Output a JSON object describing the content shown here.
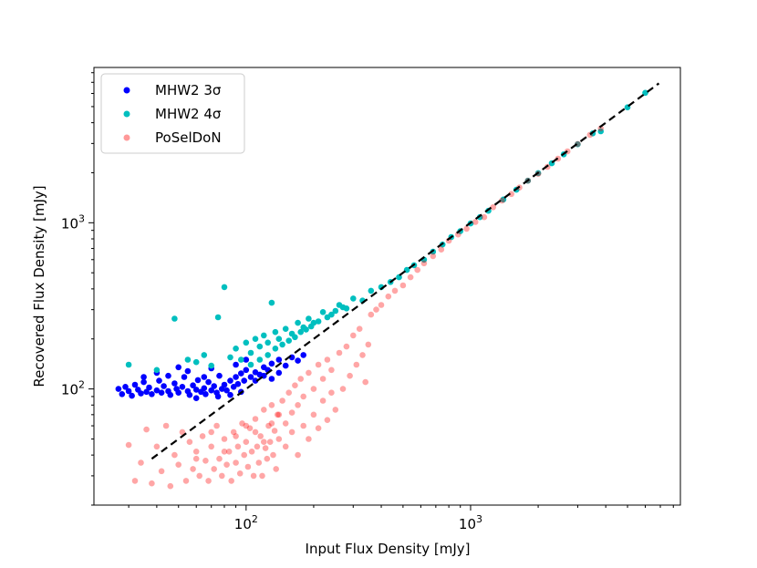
{
  "chart_data": {
    "type": "scatter",
    "title": "",
    "xlabel": "Input Flux Density [mJy]",
    "ylabel": "Recovered Flux Density [mJy]",
    "xscale": "log",
    "yscale": "log",
    "xlim": [
      21,
      8600
    ],
    "ylim": [
      20,
      8600
    ],
    "x_ticks": [
      {
        "value": 100,
        "label": "10",
        "exp": "2"
      },
      {
        "value": 1000,
        "label": "10",
        "exp": "3"
      }
    ],
    "y_ticks": [
      {
        "value": 100,
        "label": "10",
        "exp": "2"
      },
      {
        "value": 1000,
        "label": "10",
        "exp": "3"
      }
    ],
    "grid": false,
    "legend_position": "top-left",
    "legend": [
      {
        "label": "MHW2 3σ",
        "series": 0
      },
      {
        "label": "MHW2 4σ",
        "series": 1
      },
      {
        "label": "PoSelDoN",
        "series": 2
      }
    ],
    "series": [
      {
        "name": "MHW2 3σ",
        "color": "#0000ff",
        "opacity": 1.0,
        "points": [
          [
            27,
            100
          ],
          [
            28,
            93
          ],
          [
            29,
            103
          ],
          [
            30,
            97
          ],
          [
            31,
            91
          ],
          [
            32,
            106
          ],
          [
            33,
            99
          ],
          [
            34,
            94
          ],
          [
            35,
            110
          ],
          [
            36,
            96
          ],
          [
            37,
            102
          ],
          [
            38,
            93
          ],
          [
            40,
            98
          ],
          [
            41,
            112
          ],
          [
            42,
            95
          ],
          [
            43,
            104
          ],
          [
            45,
            97
          ],
          [
            46,
            92
          ],
          [
            48,
            108
          ],
          [
            49,
            100
          ],
          [
            50,
            95
          ],
          [
            52,
            103
          ],
          [
            53,
            118
          ],
          [
            55,
            97
          ],
          [
            56,
            92
          ],
          [
            58,
            105
          ],
          [
            60,
            99
          ],
          [
            61,
            113
          ],
          [
            63,
            96
          ],
          [
            65,
            101
          ],
          [
            66,
            93
          ],
          [
            68,
            110
          ],
          [
            70,
            98
          ],
          [
            72,
            104
          ],
          [
            74,
            95
          ],
          [
            76,
            120
          ],
          [
            78,
            100
          ],
          [
            80,
            106
          ],
          [
            82,
            98
          ],
          [
            85,
            112
          ],
          [
            88,
            103
          ],
          [
            90,
            118
          ],
          [
            92,
            107
          ],
          [
            95,
            124
          ],
          [
            98,
            112
          ],
          [
            100,
            130
          ],
          [
            105,
            118
          ],
          [
            110,
            126
          ],
          [
            115,
            122
          ],
          [
            120,
            135
          ],
          [
            125,
            130
          ],
          [
            130,
            142
          ],
          [
            140,
            150
          ],
          [
            150,
            138
          ],
          [
            160,
            155
          ],
          [
            170,
            148
          ],
          [
            180,
            160
          ],
          [
            45,
            120
          ],
          [
            55,
            128
          ],
          [
            65,
            118
          ],
          [
            70,
            133
          ],
          [
            60,
            88
          ],
          [
            75,
            90
          ],
          [
            85,
            92
          ],
          [
            95,
            96
          ],
          [
            50,
            135
          ],
          [
            40,
            125
          ],
          [
            35,
            118
          ],
          [
            90,
            140
          ],
          [
            100,
            150
          ],
          [
            110,
            112
          ],
          [
            120,
            120
          ],
          [
            130,
            115
          ],
          [
            140,
            125
          ]
        ]
      },
      {
        "name": "MHW2 4σ",
        "color": "#00bfbf",
        "opacity": 1.0,
        "points": [
          [
            30,
            140
          ],
          [
            40,
            130
          ],
          [
            48,
            265
          ],
          [
            55,
            150
          ],
          [
            60,
            145
          ],
          [
            65,
            160
          ],
          [
            70,
            138
          ],
          [
            75,
            270
          ],
          [
            80,
            410
          ],
          [
            85,
            155
          ],
          [
            90,
            175
          ],
          [
            95,
            150
          ],
          [
            100,
            190
          ],
          [
            105,
            165
          ],
          [
            110,
            200
          ],
          [
            115,
            180
          ],
          [
            120,
            210
          ],
          [
            125,
            190
          ],
          [
            130,
            330
          ],
          [
            135,
            220
          ],
          [
            140,
            200
          ],
          [
            150,
            230
          ],
          [
            160,
            215
          ],
          [
            170,
            250
          ],
          [
            180,
            235
          ],
          [
            190,
            265
          ],
          [
            200,
            250
          ],
          [
            220,
            290
          ],
          [
            240,
            280
          ],
          [
            260,
            320
          ],
          [
            280,
            305
          ],
          [
            300,
            350
          ],
          [
            330,
            340
          ],
          [
            360,
            390
          ],
          [
            400,
            410
          ],
          [
            440,
            440
          ],
          [
            480,
            470
          ],
          [
            520,
            520
          ],
          [
            560,
            555
          ],
          [
            620,
            600
          ],
          [
            680,
            670
          ],
          [
            750,
            740
          ],
          [
            820,
            820
          ],
          [
            900,
            890
          ],
          [
            1000,
            990
          ],
          [
            1100,
            1080
          ],
          [
            1200,
            1180
          ],
          [
            1400,
            1380
          ],
          [
            1600,
            1580
          ],
          [
            1800,
            1790
          ],
          [
            2000,
            1990
          ],
          [
            2300,
            2280
          ],
          [
            2600,
            2580
          ],
          [
            3000,
            2970
          ],
          [
            3500,
            3450
          ],
          [
            3800,
            3550
          ],
          [
            5000,
            4950
          ],
          [
            6000,
            6050
          ],
          [
            105,
            140
          ],
          [
            115,
            150
          ],
          [
            125,
            160
          ],
          [
            135,
            175
          ],
          [
            145,
            185
          ],
          [
            155,
            195
          ],
          [
            165,
            205
          ],
          [
            175,
            220
          ],
          [
            185,
            228
          ],
          [
            195,
            238
          ],
          [
            210,
            255
          ],
          [
            230,
            270
          ],
          [
            250,
            295
          ],
          [
            270,
            310
          ]
        ]
      },
      {
        "name": "PoSelDoN",
        "color": "#ff0000",
        "opacity": 0.35,
        "points": [
          [
            30,
            46
          ],
          [
            32,
            28
          ],
          [
            34,
            36
          ],
          [
            36,
            57
          ],
          [
            38,
            27
          ],
          [
            40,
            45
          ],
          [
            42,
            32
          ],
          [
            44,
            60
          ],
          [
            46,
            26
          ],
          [
            48,
            40
          ],
          [
            50,
            35
          ],
          [
            52,
            55
          ],
          [
            54,
            28
          ],
          [
            56,
            48
          ],
          [
            58,
            33
          ],
          [
            60,
            42
          ],
          [
            62,
            30
          ],
          [
            64,
            52
          ],
          [
            66,
            37
          ],
          [
            68,
            28
          ],
          [
            70,
            45
          ],
          [
            72,
            33
          ],
          [
            74,
            60
          ],
          [
            76,
            38
          ],
          [
            78,
            30
          ],
          [
            80,
            50
          ],
          [
            82,
            35
          ],
          [
            84,
            42
          ],
          [
            86,
            28
          ],
          [
            88,
            55
          ],
          [
            90,
            36
          ],
          [
            92,
            45
          ],
          [
            94,
            31
          ],
          [
            96,
            62
          ],
          [
            98,
            40
          ],
          [
            100,
            48
          ],
          [
            102,
            34
          ],
          [
            104,
            58
          ],
          [
            106,
            42
          ],
          [
            108,
            30
          ],
          [
            110,
            66
          ],
          [
            112,
            45
          ],
          [
            114,
            36
          ],
          [
            116,
            52
          ],
          [
            118,
            30
          ],
          [
            120,
            75
          ],
          [
            122,
            44
          ],
          [
            124,
            38
          ],
          [
            126,
            60
          ],
          [
            128,
            48
          ],
          [
            130,
            80
          ],
          [
            132,
            40
          ],
          [
            134,
            56
          ],
          [
            136,
            33
          ],
          [
            138,
            70
          ],
          [
            140,
            50
          ],
          [
            145,
            85
          ],
          [
            150,
            62
          ],
          [
            155,
            95
          ],
          [
            160,
            72
          ],
          [
            165,
            105
          ],
          [
            170,
            80
          ],
          [
            175,
            115
          ],
          [
            180,
            90
          ],
          [
            190,
            125
          ],
          [
            200,
            100
          ],
          [
            210,
            140
          ],
          [
            220,
            115
          ],
          [
            230,
            150
          ],
          [
            240,
            130
          ],
          [
            260,
            165
          ],
          [
            280,
            180
          ],
          [
            300,
            210
          ],
          [
            320,
            230
          ],
          [
            340,
            110
          ],
          [
            360,
            280
          ],
          [
            380,
            300
          ],
          [
            400,
            320
          ],
          [
            430,
            360
          ],
          [
            460,
            390
          ],
          [
            500,
            420
          ],
          [
            540,
            470
          ],
          [
            580,
            520
          ],
          [
            620,
            570
          ],
          [
            680,
            630
          ],
          [
            740,
            690
          ],
          [
            800,
            780
          ],
          [
            880,
            850
          ],
          [
            960,
            920
          ],
          [
            1050,
            1010
          ],
          [
            1150,
            1080
          ],
          [
            1260,
            1240
          ],
          [
            1380,
            1360
          ],
          [
            1520,
            1490
          ],
          [
            1650,
            1630
          ],
          [
            1800,
            1790
          ],
          [
            2000,
            1970
          ],
          [
            2200,
            2170
          ],
          [
            2450,
            2430
          ],
          [
            2700,
            2690
          ],
          [
            3000,
            2980
          ],
          [
            3400,
            3380
          ],
          [
            3800,
            3700
          ],
          [
            150,
            45
          ],
          [
            160,
            55
          ],
          [
            170,
            40
          ],
          [
            180,
            60
          ],
          [
            190,
            50
          ],
          [
            200,
            70
          ],
          [
            210,
            58
          ],
          [
            220,
            85
          ],
          [
            230,
            65
          ],
          [
            240,
            95
          ],
          [
            250,
            75
          ],
          [
            270,
            100
          ],
          [
            290,
            120
          ],
          [
            310,
            140
          ],
          [
            330,
            160
          ],
          [
            350,
            185
          ],
          [
            110,
            55
          ],
          [
            120,
            48
          ],
          [
            130,
            62
          ],
          [
            140,
            70
          ],
          [
            100,
            60
          ],
          [
            90,
            52
          ],
          [
            80,
            42
          ],
          [
            70,
            55
          ],
          [
            60,
            38
          ]
        ]
      }
    ],
    "reference_line": {
      "style": "dashed",
      "color": "#000000",
      "from": [
        38,
        38
      ],
      "to": [
        6900,
        6900
      ]
    }
  }
}
